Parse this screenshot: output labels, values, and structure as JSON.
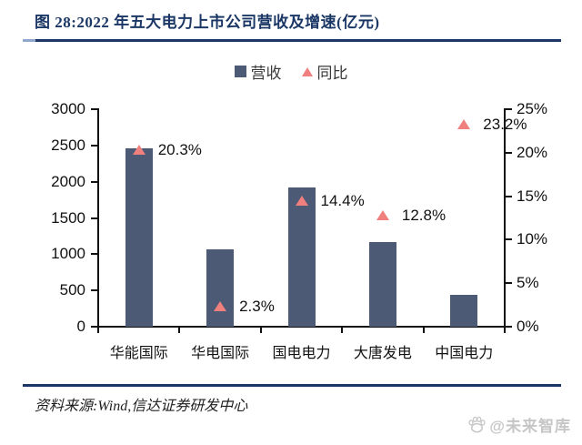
{
  "header": {
    "title": "图 28:2022 年五大电力上市公司营收及增速(亿元)"
  },
  "legend": {
    "revenue_label": "营收",
    "yoy_label": "同比"
  },
  "chart_data": {
    "type": "bar",
    "title": "2022 年五大电力上市公司营收及增速(亿元)",
    "categories": [
      "华能国际",
      "华电国际",
      "国电电力",
      "大唐发电",
      "中国电力"
    ],
    "series": [
      {
        "name": "营收",
        "type": "bar",
        "axis": "left",
        "values": [
          2460,
          1070,
          1920,
          1170,
          440
        ]
      },
      {
        "name": "同比",
        "type": "triangle-marker",
        "axis": "right",
        "values": [
          20.3,
          2.3,
          14.4,
          12.8,
          23.2
        ],
        "labels": [
          "20.3%",
          "2.3%",
          "14.4%",
          "12.8%",
          "23.2%"
        ]
      }
    ],
    "left_axis": {
      "min": 0,
      "max": 3000,
      "step": 500,
      "tick_labels": [
        "0",
        "500",
        "1000",
        "1500",
        "2000",
        "2500",
        "3000"
      ]
    },
    "right_axis": {
      "min": 0,
      "max": 25,
      "step": 5,
      "tick_labels": [
        "0%",
        "5%",
        "10%",
        "15%",
        "20%",
        "25%"
      ]
    },
    "grid": "off",
    "legend_position": "top-center"
  },
  "colors": {
    "accent_navy": "#1b3765",
    "bar": "#4d5a76",
    "marker": "#f0807d",
    "axis": "#111111",
    "watermark_gray": "#c6c6c6"
  },
  "footer": {
    "source": "资料来源:Wind,信达证券研发中心"
  },
  "watermark": {
    "text": "@未来智库"
  }
}
